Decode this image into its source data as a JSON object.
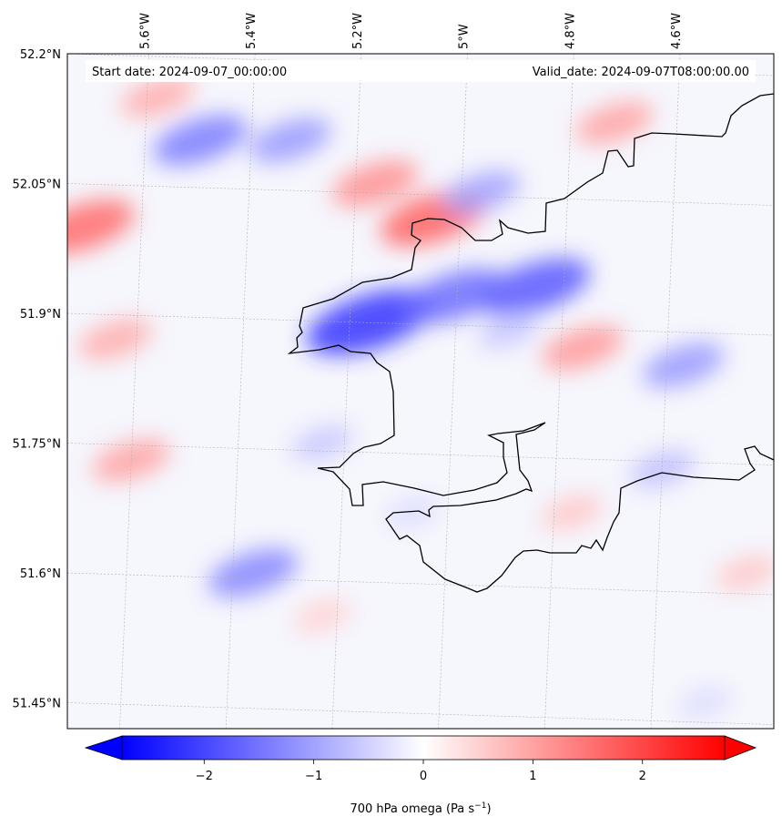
{
  "header": {
    "start_date": "Start date: 2024-09-07_00:00:00",
    "valid_date": "Valid_date: 2024-09-07T08:00:00.00"
  },
  "map": {
    "lon_labels": [
      "5.6°W",
      "5.4°W",
      "5.2°W",
      "5°W",
      "4.8°W",
      "4.6°W"
    ],
    "lon_values": [
      -5.6,
      -5.4,
      -5.2,
      -5.0,
      -4.8,
      -4.6
    ],
    "lat_labels": [
      "52.2°N",
      "52.05°N",
      "51.9°N",
      "51.75°N",
      "51.6°N",
      "51.45°N"
    ],
    "lat_values": [
      52.2,
      52.05,
      51.9,
      51.75,
      51.6,
      51.45
    ],
    "extent": {
      "lon_min": -5.75,
      "lon_max": -4.42,
      "lat_min": 51.42,
      "lat_max": 52.2
    },
    "coastline_color": "#000000",
    "gridline_color": "#b0b0b0"
  },
  "colorbar": {
    "label": "700 hPa omega (Pa s",
    "label_sup": "−1",
    "label_close": ")",
    "ticks": [
      "−2",
      "−1",
      "0",
      "1",
      "2"
    ],
    "tick_values": [
      -2,
      -1,
      0,
      1,
      2
    ],
    "range": [
      -2.75,
      2.75
    ],
    "colors": {
      "min": "#0000ff",
      "mid": "#ffffff",
      "max": "#ff0000"
    }
  },
  "field_features": [
    {
      "lon": -5.72,
      "lat": 52.0,
      "value": 1.6
    },
    {
      "lon": -5.06,
      "lat": 52.01,
      "value": 1.7
    },
    {
      "lon": -5.17,
      "lat": 52.05,
      "value": 1.2
    },
    {
      "lon": -5.18,
      "lat": 51.89,
      "value": -2.2
    },
    {
      "lon": -4.87,
      "lat": 51.93,
      "value": -1.8
    },
    {
      "lon": -5.02,
      "lat": 51.92,
      "value": -1.6
    },
    {
      "lon": -5.5,
      "lat": 52.1,
      "value": -1.4
    },
    {
      "lon": -5.33,
      "lat": 52.1,
      "value": -1.1
    },
    {
      "lon": -4.97,
      "lat": 52.04,
      "value": -1.0
    },
    {
      "lon": -4.78,
      "lat": 51.86,
      "value": 1.1
    },
    {
      "lon": -4.92,
      "lat": 51.88,
      "value": -0.6
    },
    {
      "lon": -5.4,
      "lat": 51.6,
      "value": -1.3
    },
    {
      "lon": -5.27,
      "lat": 51.75,
      "value": -0.6
    },
    {
      "lon": -5.63,
      "lat": 51.73,
      "value": 1.0
    },
    {
      "lon": -5.66,
      "lat": 51.87,
      "value": 0.9
    },
    {
      "lon": -4.59,
      "lat": 51.84,
      "value": -1.1
    },
    {
      "lon": -4.63,
      "lat": 51.72,
      "value": -0.7
    },
    {
      "lon": -4.47,
      "lat": 51.6,
      "value": 0.6
    },
    {
      "lon": -4.72,
      "lat": 52.12,
      "value": 1.0
    },
    {
      "lon": -5.58,
      "lat": 52.15,
      "value": 0.9
    },
    {
      "lon": -4.8,
      "lat": 51.67,
      "value": 0.6
    },
    {
      "lon": -5.27,
      "lat": 51.55,
      "value": 0.5
    },
    {
      "lon": -5.1,
      "lat": 51.67,
      "value": -0.4
    },
    {
      "lon": -4.55,
      "lat": 51.45,
      "value": -0.4
    }
  ]
}
